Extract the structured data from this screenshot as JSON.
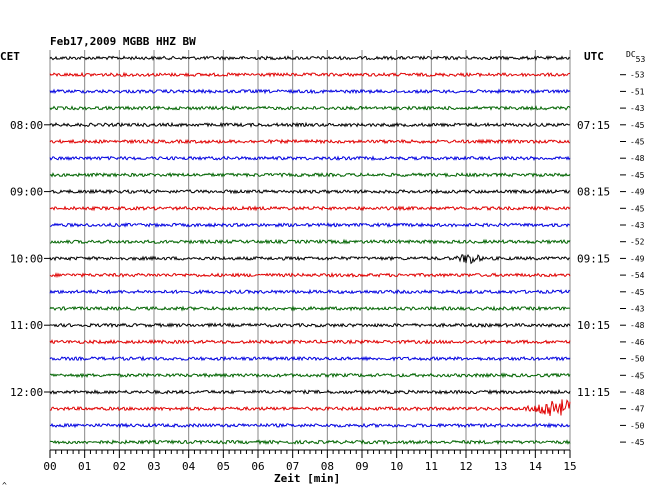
{
  "chart_data": {
    "type": "line",
    "title": "Feb17,2009   MGBB HHZ BW",
    "left_label": "CET",
    "right_label": "UTC",
    "dc_label": "DC",
    "dc_first": "53",
    "xlabel": "Zeit [min]",
    "xlim": [
      0,
      15
    ],
    "x_ticks": [
      "00",
      "01",
      "02",
      "03",
      "04",
      "05",
      "06",
      "07",
      "08",
      "09",
      "10",
      "11",
      "12",
      "13",
      "14",
      "15"
    ],
    "trace_colors": [
      "#000000",
      "#e00000",
      "#0000e0",
      "#006400"
    ],
    "trace_count": 24,
    "left_hour_labels": [
      {
        "trace": 4,
        "text": "08:00"
      },
      {
        "trace": 8,
        "text": "09:00"
      },
      {
        "trace": 12,
        "text": "10:00"
      },
      {
        "trace": 16,
        "text": "11:00"
      },
      {
        "trace": 20,
        "text": "12:00"
      }
    ],
    "right_hour_labels": [
      {
        "trace": 4,
        "text": "07:15"
      },
      {
        "trace": 8,
        "text": "08:15"
      },
      {
        "trace": 12,
        "text": "09:15"
      },
      {
        "trace": 16,
        "text": "10:15"
      },
      {
        "trace": 20,
        "text": "11:15"
      }
    ],
    "dc_values": [
      "-53",
      "-51",
      "-43",
      "-45",
      "-45",
      "-48",
      "-45",
      "-49",
      "-45",
      "-43",
      "-52",
      "-49",
      "-54",
      "-45",
      "-43",
      "-48",
      "-46",
      "-50",
      "-45",
      "-48",
      "-47",
      "-50",
      "-45"
    ],
    "events": [
      {
        "trace": 12,
        "minute": 12.1,
        "amplitude": "small"
      },
      {
        "trace": 21,
        "minute": 14.6,
        "amplitude": "large"
      }
    ],
    "corner_mark": "^"
  }
}
